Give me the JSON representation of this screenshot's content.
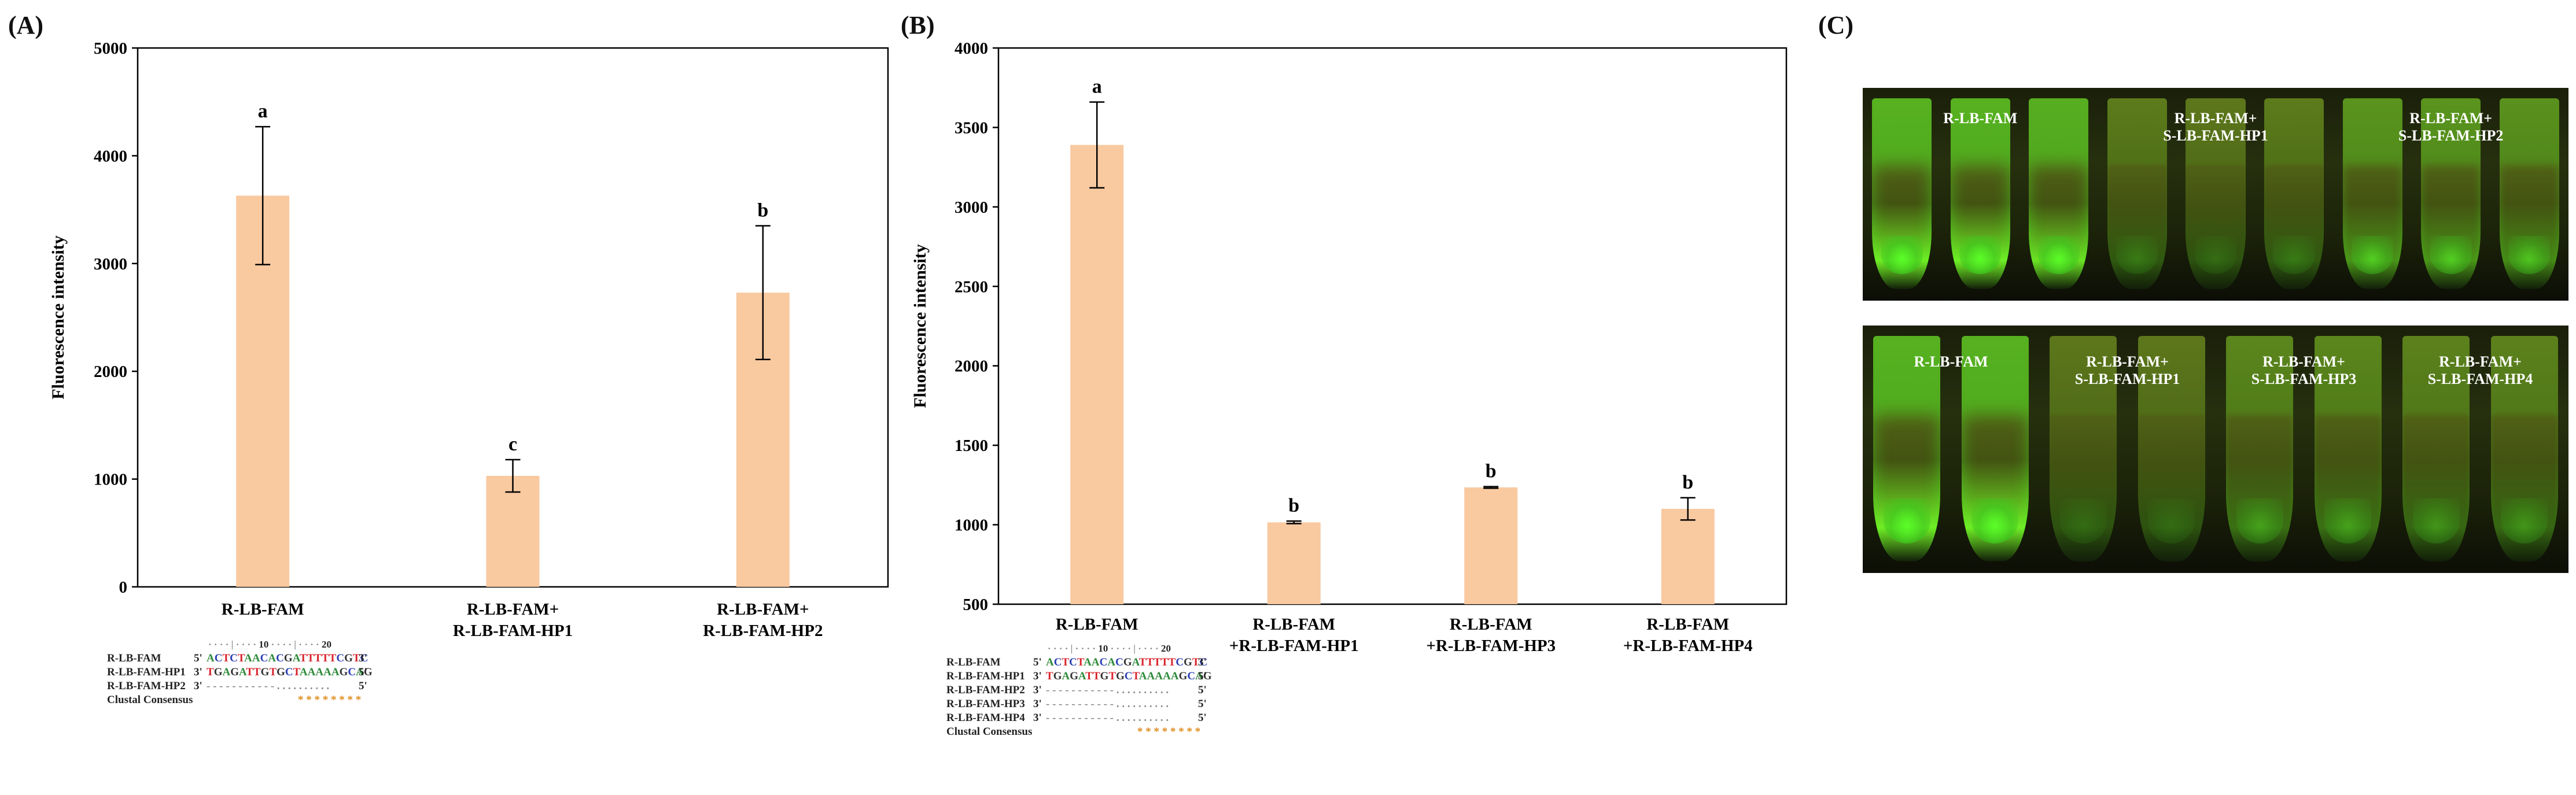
{
  "panels": {
    "a": "(A)",
    "b": "(B)",
    "c": "(C)"
  },
  "chart_data": [
    {
      "type": "bar",
      "title": "",
      "xlabel": "",
      "ylabel": "Fluorescence intensity",
      "ylim": [
        0,
        5000
      ],
      "yticks": [
        0,
        1000,
        2000,
        3000,
        4000,
        5000
      ],
      "categories": [
        "R-LB-FAM",
        "R-LB-FAM+\nR-LB-FAM-HP1",
        "R-LB-FAM+\nR-LB-FAM-HP2"
      ],
      "values": [
        3630,
        1030,
        2730
      ],
      "errors": [
        640,
        150,
        620
      ],
      "letters": [
        "a",
        "c",
        "b"
      ],
      "bar_color": "#f9c9a0"
    },
    {
      "type": "bar",
      "title": "",
      "xlabel": "",
      "ylabel": "Fluorescence intensity",
      "ylim": [
        500,
        4000
      ],
      "yticks": [
        500,
        1000,
        1500,
        2000,
        2500,
        3000,
        3500,
        4000
      ],
      "categories": [
        "R-LB-FAM",
        "R-LB-FAM\n+R-LB-FAM-HP1",
        "R-LB-FAM\n+R-LB-FAM-HP3",
        "R-LB-FAM\n+R-LB-FAM-HP4"
      ],
      "values": [
        3390,
        1015,
        1235,
        1100
      ],
      "errors": [
        270,
        8,
        5,
        70
      ],
      "letters": [
        "a",
        "b",
        "b",
        "b"
      ],
      "bar_color": "#f9c9a0"
    }
  ],
  "alignment_a": {
    "ruler": {
      "ten": "10",
      "twenty": "20"
    },
    "rows": [
      {
        "name": "R-LB-FAM",
        "prefix": "5'",
        "seq": "ACTCTAACACGATTTTTCGTC",
        "suffix": "3'"
      },
      {
        "name": "R-LB-FAM-HP1",
        "prefix": "3'",
        "seq": "TGAGATTGTGCTAAAAAGCAG",
        "suffix": "5'"
      },
      {
        "name": "R-LB-FAM-HP2",
        "prefix": "3'",
        "seq": "- - - - - - - - - - - . . . . . . . . . .",
        "suffix": "5'"
      },
      {
        "name": "Clustal Consensus",
        "prefix": "",
        "seq": "* * * * * * * *",
        "suffix": ""
      }
    ]
  },
  "alignment_b": {
    "ruler": {
      "ten": "10",
      "twenty": "20"
    },
    "rows": [
      {
        "name": "R-LB-FAM",
        "prefix": "5'",
        "seq": "ACTCTAACACGATTTTTCGTC",
        "suffix": "3'"
      },
      {
        "name": "R-LB-FAM-HP1",
        "prefix": "3'",
        "seq": "TGAGATTGTGCTAAAAAGCAG",
        "suffix": "5'"
      },
      {
        "name": "R-LB-FAM-HP2",
        "prefix": "3'",
        "seq": "- - - - - - - - - - - . . . . . . . . . .",
        "suffix": "5'"
      },
      {
        "name": "R-LB-FAM-HP3",
        "prefix": "3'",
        "seq": "- - - - - - - - - - - . . . . . . . . . .",
        "suffix": "5'"
      },
      {
        "name": "R-LB-FAM-HP4",
        "prefix": "3'",
        "seq": "- - - - - - - - - - - . . . . . . . . . .",
        "suffix": "5'"
      },
      {
        "name": "Clustal Consensus",
        "prefix": "",
        "seq": "* * * * * * * *",
        "suffix": ""
      }
    ]
  },
  "gel_top": {
    "labels": [
      "R-LB-FAM",
      "R-LB-FAM+\nS-LB-FAM-HP1",
      "R-LB-FAM+\nS-LB-FAM-HP2"
    ],
    "tube_glow": [
      0.95,
      0.95,
      0.9,
      0.2,
      0.15,
      0.2,
      0.55,
      0.55,
      0.5
    ]
  },
  "gel_bottom": {
    "labels": [
      "R-LB-FAM",
      "R-LB-FAM+\nS-LB-FAM-HP1",
      "R-LB-FAM+\nS-LB-FAM-HP3",
      "R-LB-FAM+\nS-LB-FAM-HP4"
    ],
    "tube_glow": [
      0.95,
      0.95,
      0.15,
      0.15,
      0.35,
      0.35,
      0.3,
      0.3
    ]
  }
}
